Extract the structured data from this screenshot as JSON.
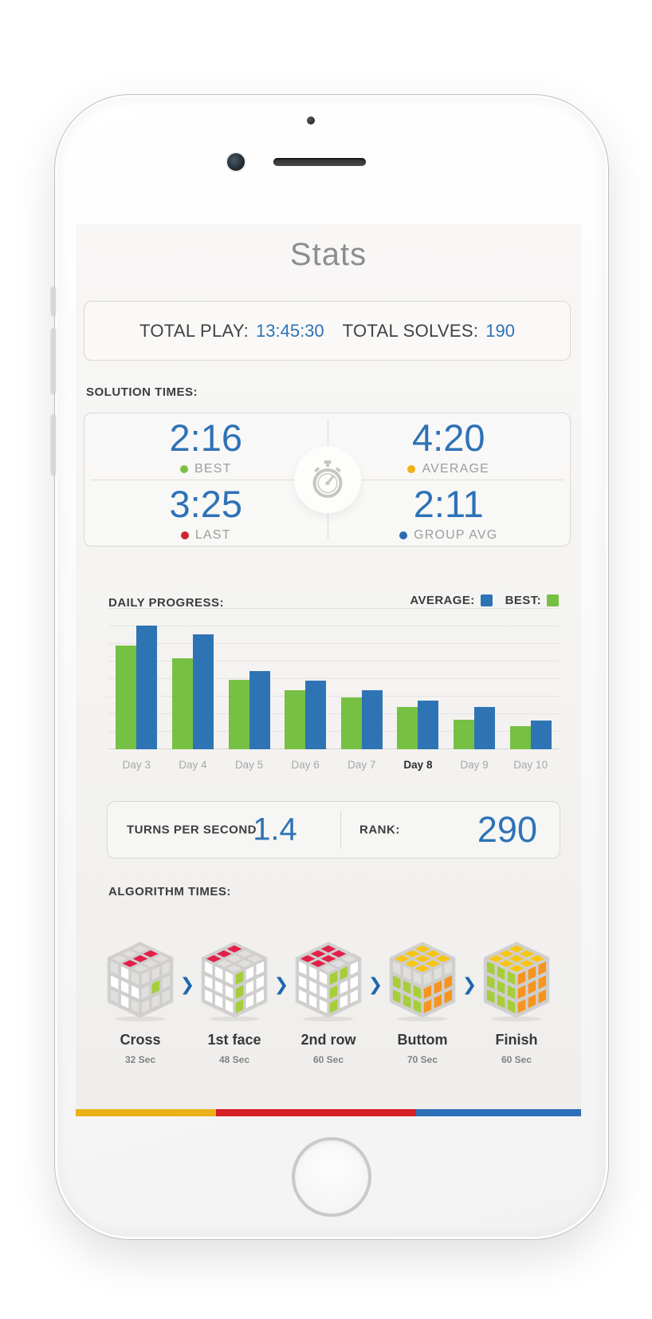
{
  "colors": {
    "accent_blue": "#2e72b6",
    "bar_green": "#76c043",
    "bar_blue": "#2e74b5",
    "heading_dark": "#3d3d3d",
    "label_gray": "#9d9d9d"
  },
  "title": "Stats",
  "totals": {
    "play_label": "TOTAL PLAY:",
    "play_value": "13:45:30",
    "solves_label": "TOTAL SOLVES:",
    "solves_value": "190"
  },
  "solution_times": {
    "heading": "SOLUTION TIMES:",
    "center_icon": "stopwatch-icon",
    "cells": [
      {
        "value": "2:16",
        "label": "BEST",
        "dot_color": "#7bc143"
      },
      {
        "value": "4:20",
        "label": "AVERAGE",
        "dot_color": "#efb212"
      },
      {
        "value": "3:25",
        "label": "LAST",
        "dot_color": "#cd2430"
      },
      {
        "value": "2:11",
        "label": "GROUP AVG",
        "dot_color": "#2a6cb3"
      }
    ]
  },
  "daily_progress": {
    "heading": "DAILY PROGRESS:",
    "legend": [
      {
        "label": "AVERAGE:",
        "color": "#2e74b5"
      },
      {
        "label": "BEST:",
        "color": "#76c043"
      }
    ]
  },
  "chart_data": {
    "type": "bar",
    "categories": [
      "Day 3",
      "Day 4",
      "Day 5",
      "Day 6",
      "Day 7",
      "Day 8",
      "Day 9",
      "Day 10"
    ],
    "highlighted_category": "Day 8",
    "series": [
      {
        "name": "BEST",
        "color": "#76c043",
        "values": [
          130,
          114,
          87,
          74,
          65,
          53,
          37,
          29
        ]
      },
      {
        "name": "AVERAGE",
        "color": "#2e74b5",
        "values": [
          155,
          144,
          98,
          86,
          74,
          61,
          53,
          36
        ]
      }
    ],
    "ylim": [
      0,
      160
    ],
    "grid": true,
    "legend_position": "top-right",
    "value_axis_labels": false
  },
  "stats_row": {
    "tps_label": "TURNS PER SECOND",
    "tps_value": "1.4",
    "rank_label": "RANK:",
    "rank_value": "290"
  },
  "algorithm_times": {
    "heading": "ALGORITHM TIMES:",
    "arrow_icon": "chevron-right-icon",
    "palette": {
      "R": "#e2204a",
      "G": "#a6ce39",
      "Y": "#f9c513",
      "O": "#f7941e",
      "W": "#ffffff",
      "X": "#e0dfdd"
    },
    "steps": [
      {
        "name": "Cross",
        "time": "32 Sec",
        "cube": {
          "top": [
            "X",
            "R",
            "X",
            "X",
            "R",
            "X",
            "X",
            "R",
            "X"
          ],
          "front": [
            "X",
            "W",
            "X",
            "W",
            "W",
            "W",
            "X",
            "W",
            "X"
          ],
          "right": [
            "X",
            "X",
            "X",
            "X",
            "G",
            "X",
            "X",
            "X",
            "X"
          ]
        }
      },
      {
        "name": "1st face",
        "time": "48 Sec",
        "cube": {
          "top": [
            "R",
            "X",
            "X",
            "R",
            "X",
            "X",
            "R",
            "X",
            "X"
          ],
          "front": [
            "W",
            "W",
            "W",
            "W",
            "W",
            "W",
            "W",
            "W",
            "W"
          ],
          "right": [
            "G",
            "W",
            "W",
            "G",
            "W",
            "W",
            "G",
            "W",
            "W"
          ]
        }
      },
      {
        "name": "2nd row",
        "time": "60 Sec",
        "cube": {
          "top": [
            "R",
            "R",
            "X",
            "R",
            "R",
            "X",
            "R",
            "R",
            "X"
          ],
          "front": [
            "W",
            "W",
            "W",
            "W",
            "W",
            "W",
            "W",
            "W",
            "W"
          ],
          "right": [
            "G",
            "G",
            "W",
            "G",
            "W",
            "W",
            "G",
            "W",
            "W"
          ]
        }
      },
      {
        "name": "Buttom",
        "time": "70 Sec",
        "cube": {
          "top": [
            "Y",
            "Y",
            "Y",
            "Y",
            "Y",
            "Y",
            "Y",
            "Y",
            "Y"
          ],
          "front": [
            "X",
            "X",
            "X",
            "G",
            "G",
            "G",
            "G",
            "G",
            "G"
          ],
          "right": [
            "X",
            "X",
            "X",
            "O",
            "O",
            "O",
            "O",
            "O",
            "O"
          ]
        }
      },
      {
        "name": "Finish",
        "time": "60 Sec",
        "cube": {
          "top": [
            "Y",
            "Y",
            "Y",
            "Y",
            "Y",
            "Y",
            "Y",
            "Y",
            "Y"
          ],
          "front": [
            "G",
            "G",
            "G",
            "G",
            "G",
            "G",
            "G",
            "G",
            "G"
          ],
          "right": [
            "O",
            "O",
            "O",
            "O",
            "O",
            "O",
            "O",
            "O",
            "O"
          ]
        }
      }
    ]
  },
  "footer_stripe": {
    "segments": [
      {
        "color": "#eab117",
        "width_pct": 27.8
      },
      {
        "color": "#d62027",
        "width_pct": 39.6
      },
      {
        "color": "#2e70b8",
        "width_pct": 32.6
      }
    ]
  }
}
